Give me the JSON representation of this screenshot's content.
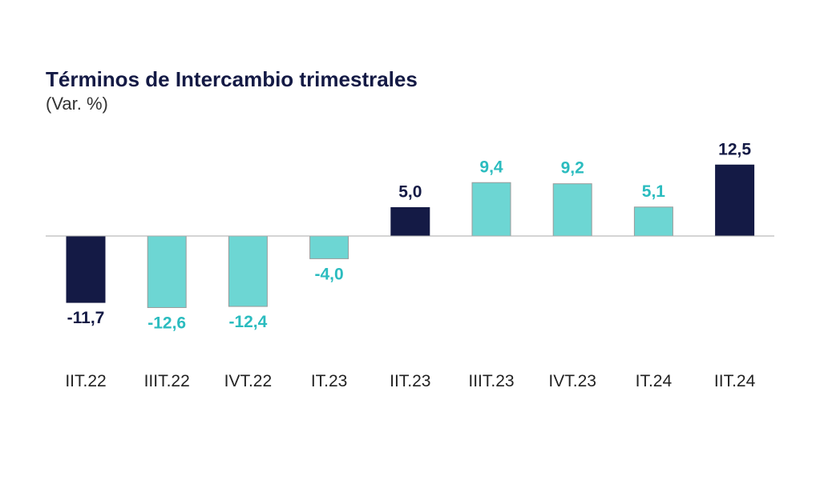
{
  "chart_data": {
    "type": "bar",
    "title": "Términos de Intercambio trimestrales",
    "subtitle": "(Var. %)",
    "categories": [
      "IIT.22",
      "IIIT.22",
      "IVT.22",
      "IT.23",
      "IIT.23",
      "IIIT.23",
      "IVT.23",
      "IT.24",
      "IIT.24"
    ],
    "values": [
      -11.7,
      -12.6,
      -12.4,
      -4.0,
      5.0,
      9.4,
      9.2,
      5.1,
      12.5
    ],
    "value_labels": [
      "-11,7",
      "-12,6",
      "-12,4",
      "-4,0",
      "5,0",
      "9,4",
      "9,2",
      "5,1",
      "12,5"
    ],
    "highlighted": [
      true,
      false,
      false,
      false,
      true,
      false,
      false,
      false,
      true
    ],
    "colors": {
      "highlight": "#141a45",
      "normal": "#6dd6d3",
      "normal_label": "#2bbcbf",
      "axis": "#aaaaaa"
    },
    "grid": false,
    "legend": "none"
  }
}
